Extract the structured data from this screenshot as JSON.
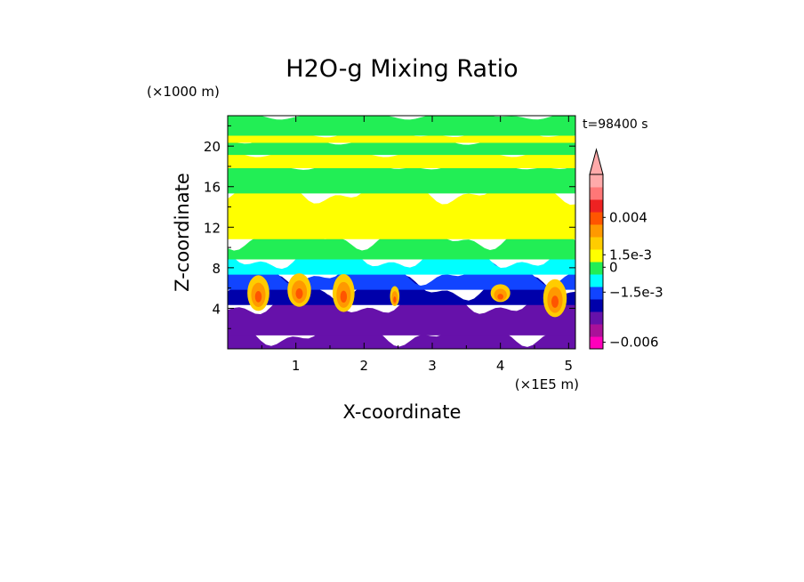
{
  "chart_data": {
    "type": "heatmap",
    "title": "H2O-g Mixing Ratio",
    "time_label": "t=98400 s",
    "xlabel": "X-coordinate",
    "ylabel": "Z-coordinate",
    "x_unit": "(×1E5 m)",
    "y_unit": "(×1000 m)",
    "xlim": [
      0,
      5.1
    ],
    "ylim": [
      0,
      23
    ],
    "x_ticks": [
      {
        "value": 1,
        "label": "1"
      },
      {
        "value": 2,
        "label": "2"
      },
      {
        "value": 3,
        "label": "3"
      },
      {
        "value": 4,
        "label": "4"
      },
      {
        "value": 5,
        "label": "5"
      }
    ],
    "y_ticks": [
      {
        "value": 4,
        "label": "4"
      },
      {
        "value": 8,
        "label": "8"
      },
      {
        "value": 12,
        "label": "12"
      },
      {
        "value": 16,
        "label": "16"
      },
      {
        "value": 20,
        "label": "20"
      }
    ],
    "colorbar": {
      "levels": [
        {
          "color": "#ff00bb"
        },
        {
          "color": "#aa1199"
        },
        {
          "color": "#6611aa"
        },
        {
          "color": "#0000aa"
        },
        {
          "color": "#1144ff"
        },
        {
          "color": "#00ffff"
        },
        {
          "color": "#22ee55"
        },
        {
          "color": "#ffff00"
        },
        {
          "color": "#ffcc00"
        },
        {
          "color": "#ff9900"
        },
        {
          "color": "#ff5500"
        },
        {
          "color": "#ee2222"
        },
        {
          "color": "#ff7777"
        },
        {
          "color": "#ffaaaa"
        }
      ],
      "labels": [
        {
          "level": 0.53,
          "text": "−0.006"
        },
        {
          "level": 4.55,
          "text": "−1.5e-3"
        },
        {
          "level": 6.55,
          "text": "0"
        },
        {
          "level": 7.55,
          "text": "1.5e-3"
        },
        {
          "level": 10.55,
          "text": "0.004"
        }
      ],
      "extend": "max"
    },
    "field_bands": [
      {
        "z": [
          0,
          1.5
        ],
        "color": "#6611aa"
      },
      {
        "z": [
          1.5,
          4.5
        ],
        "color": "#6611aa"
      },
      {
        "z": [
          4.5,
          6
        ],
        "color": "#0000aa"
      },
      {
        "z": [
          6,
          7.5
        ],
        "color": "#1144ff"
      },
      {
        "z": [
          7.5,
          9
        ],
        "color": "#00ffff"
      },
      {
        "z": [
          9,
          11
        ],
        "color": "#22ee55"
      },
      {
        "z": [
          11,
          15.5
        ],
        "color": "#ffff00"
      },
      {
        "z": [
          15.5,
          18
        ],
        "color": "#22ee55"
      },
      {
        "z": [
          18,
          19.3
        ],
        "color": "#ffff00"
      },
      {
        "z": [
          19.3,
          20.5
        ],
        "color": "#22ee55"
      },
      {
        "z": [
          20.5,
          21.2
        ],
        "color": "#ffff00"
      },
      {
        "z": [
          21.2,
          23
        ],
        "color": "#22ee55"
      }
    ],
    "plumes": [
      {
        "x": 0.45,
        "z": 5.5,
        "w": 0.28,
        "h": 3.2
      },
      {
        "x": 1.05,
        "z": 5.8,
        "w": 0.3,
        "h": 3.0
      },
      {
        "x": 1.7,
        "z": 5.5,
        "w": 0.28,
        "h": 3.4
      },
      {
        "x": 2.45,
        "z": 5.2,
        "w": 0.12,
        "h": 1.8
      },
      {
        "x": 4.0,
        "z": 5.5,
        "w": 0.25,
        "h": 1.6
      },
      {
        "x": 4.8,
        "z": 5.0,
        "w": 0.3,
        "h": 3.4
      }
    ]
  }
}
